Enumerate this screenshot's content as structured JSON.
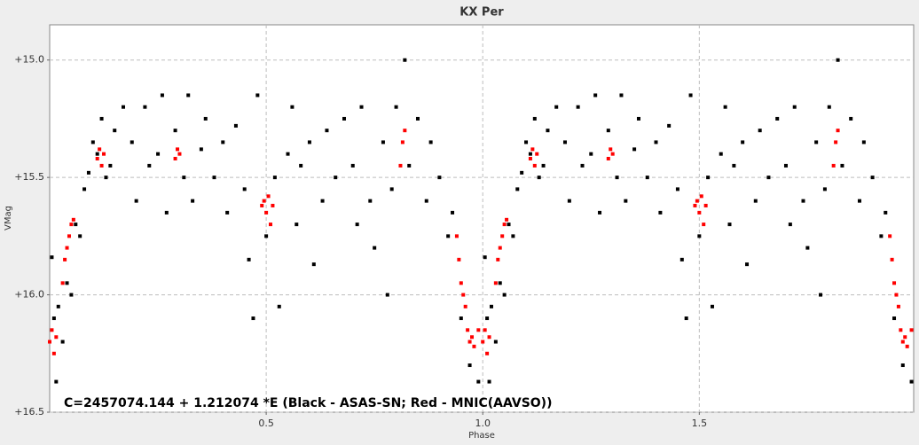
{
  "chart_data": {
    "type": "scatter",
    "title": "KX Per",
    "xlabel": "Phase",
    "ylabel": "VMag",
    "annotation": "C=2457074.144 + 1.212074 *E (Black - ASAS-SN; Red - MNIC(AAVSO))",
    "xlim": [
      0,
      1.995
    ],
    "ylim": [
      14.85,
      16.5
    ],
    "y_inverted": true,
    "grid": true,
    "xticks": [
      0.5,
      {
        "value": 1,
        "label": "1.0"
      },
      1.5
    ],
    "yticks": [
      {
        "value": 15,
        "label": "+15.0"
      },
      {
        "value": 15.5,
        "label": "+15.5"
      },
      {
        "value": 16,
        "label": "+16.0"
      },
      {
        "value": 16.5,
        "label": "+16.5"
      }
    ],
    "series": [
      {
        "color": "#000000",
        "x": [
          0.005,
          0.01,
          0.015,
          0.02,
          0.03,
          0.04,
          0.05,
          0.06,
          0.07,
          0.08,
          0.09,
          0.1,
          0.11,
          0.12,
          0.13,
          0.14,
          0.15,
          0.17,
          0.19,
          0.2,
          0.22,
          0.23,
          0.25,
          0.26,
          0.27,
          0.29,
          0.31,
          0.32,
          0.33,
          0.35,
          0.36,
          0.38,
          0.4,
          0.41,
          0.43,
          0.45,
          0.46,
          0.47,
          0.48,
          0.5,
          0.52,
          0.53,
          0.55,
          0.56,
          0.57,
          0.58,
          0.6,
          0.61,
          0.63,
          0.64,
          0.66,
          0.68,
          0.7,
          0.71,
          0.72,
          0.74,
          0.75,
          0.77,
          0.78,
          0.79,
          0.8,
          0.82,
          0.83,
          0.85,
          0.87,
          0.88,
          0.9,
          0.92,
          0.93,
          0.95,
          0.97,
          0.99,
          1.005,
          1.01,
          1.015,
          1.02,
          1.03,
          1.04,
          1.05,
          1.06,
          1.07,
          1.08,
          1.09,
          1.1,
          1.11,
          1.12,
          1.13,
          1.14,
          1.15,
          1.17,
          1.19,
          1.2,
          1.22,
          1.23,
          1.25,
          1.26,
          1.27,
          1.29,
          1.31,
          1.32,
          1.33,
          1.35,
          1.36,
          1.38,
          1.4,
          1.41,
          1.43,
          1.45,
          1.46,
          1.47,
          1.48,
          1.5,
          1.52,
          1.53,
          1.55,
          1.56,
          1.57,
          1.58,
          1.6,
          1.61,
          1.63,
          1.64,
          1.66,
          1.68,
          1.7,
          1.71,
          1.72,
          1.74,
          1.75,
          1.77,
          1.78,
          1.79,
          1.8,
          1.82,
          1.83,
          1.85,
          1.87,
          1.88,
          1.9,
          1.92,
          1.93,
          1.95,
          1.97,
          1.99
        ],
        "values": [
          15.84,
          16.1,
          16.37,
          16.05,
          16.2,
          15.95,
          16.0,
          15.7,
          15.75,
          15.55,
          15.48,
          15.35,
          15.4,
          15.25,
          15.5,
          15.45,
          15.3,
          15.2,
          15.35,
          15.6,
          15.2,
          15.45,
          15.4,
          15.15,
          15.65,
          15.3,
          15.5,
          15.15,
          15.6,
          15.38,
          15.25,
          15.5,
          15.35,
          15.65,
          15.28,
          15.55,
          15.85,
          16.1,
          15.15,
          15.75,
          15.5,
          16.05,
          15.4,
          15.2,
          15.7,
          15.45,
          15.35,
          15.87,
          15.6,
          15.3,
          15.5,
          15.25,
          15.45,
          15.7,
          15.2,
          15.6,
          15.8,
          15.35,
          16.0,
          15.55,
          15.2,
          15.0,
          15.45,
          15.25,
          15.6,
          15.35,
          15.5,
          15.75,
          15.65,
          16.1,
          16.3,
          16.37,
          15.84,
          16.1,
          16.37,
          16.05,
          16.2,
          15.95,
          16.0,
          15.7,
          15.75,
          15.55,
          15.48,
          15.35,
          15.4,
          15.25,
          15.5,
          15.45,
          15.3,
          15.2,
          15.35,
          15.6,
          15.2,
          15.45,
          15.4,
          15.15,
          15.65,
          15.3,
          15.5,
          15.15,
          15.6,
          15.38,
          15.25,
          15.5,
          15.35,
          15.65,
          15.28,
          15.55,
          15.85,
          16.1,
          15.15,
          15.75,
          15.5,
          16.05,
          15.4,
          15.2,
          15.7,
          15.45,
          15.35,
          15.87,
          15.6,
          15.3,
          15.5,
          15.25,
          15.45,
          15.7,
          15.2,
          15.6,
          15.8,
          15.35,
          16.0,
          15.55,
          15.2,
          15.0,
          15.45,
          15.25,
          15.6,
          15.35,
          15.5,
          15.75,
          15.65,
          16.1,
          16.3,
          16.37
        ]
      },
      {
        "color": "#ff0000",
        "x": [
          0.0,
          0.005,
          0.01,
          0.015,
          0.03,
          0.035,
          0.04,
          0.045,
          0.05,
          0.055,
          0.11,
          0.115,
          0.12,
          0.125,
          0.29,
          0.295,
          0.3,
          0.49,
          0.495,
          0.5,
          0.505,
          0.51,
          0.515,
          0.81,
          0.815,
          0.82,
          0.94,
          0.945,
          0.95,
          0.955,
          0.96,
          0.965,
          0.97,
          0.975,
          0.98,
          0.99,
          1.0,
          1.005,
          1.01,
          1.015,
          1.03,
          1.035,
          1.04,
          1.045,
          1.05,
          1.055,
          1.11,
          1.115,
          1.12,
          1.125,
          1.29,
          1.295,
          1.3,
          1.49,
          1.495,
          1.5,
          1.505,
          1.51,
          1.515,
          1.81,
          1.815,
          1.82,
          1.94,
          1.945,
          1.95,
          1.955,
          1.96,
          1.965,
          1.97,
          1.975,
          1.98,
          1.99
        ],
        "values": [
          16.2,
          16.15,
          16.25,
          16.18,
          15.95,
          15.85,
          15.8,
          15.75,
          15.7,
          15.68,
          15.42,
          15.38,
          15.45,
          15.4,
          15.42,
          15.38,
          15.4,
          15.62,
          15.6,
          15.65,
          15.58,
          15.7,
          15.62,
          15.45,
          15.35,
          15.3,
          15.75,
          15.85,
          15.95,
          16.0,
          16.05,
          16.15,
          16.2,
          16.18,
          16.22,
          16.15,
          16.2,
          16.15,
          16.25,
          16.18,
          15.95,
          15.85,
          15.8,
          15.75,
          15.7,
          15.68,
          15.42,
          15.38,
          15.45,
          15.4,
          15.42,
          15.38,
          15.4,
          15.62,
          15.6,
          15.65,
          15.58,
          15.7,
          15.62,
          15.45,
          15.35,
          15.3,
          15.75,
          15.85,
          15.95,
          16.0,
          16.05,
          16.15,
          16.2,
          16.18,
          16.22,
          16.15
        ]
      }
    ]
  }
}
